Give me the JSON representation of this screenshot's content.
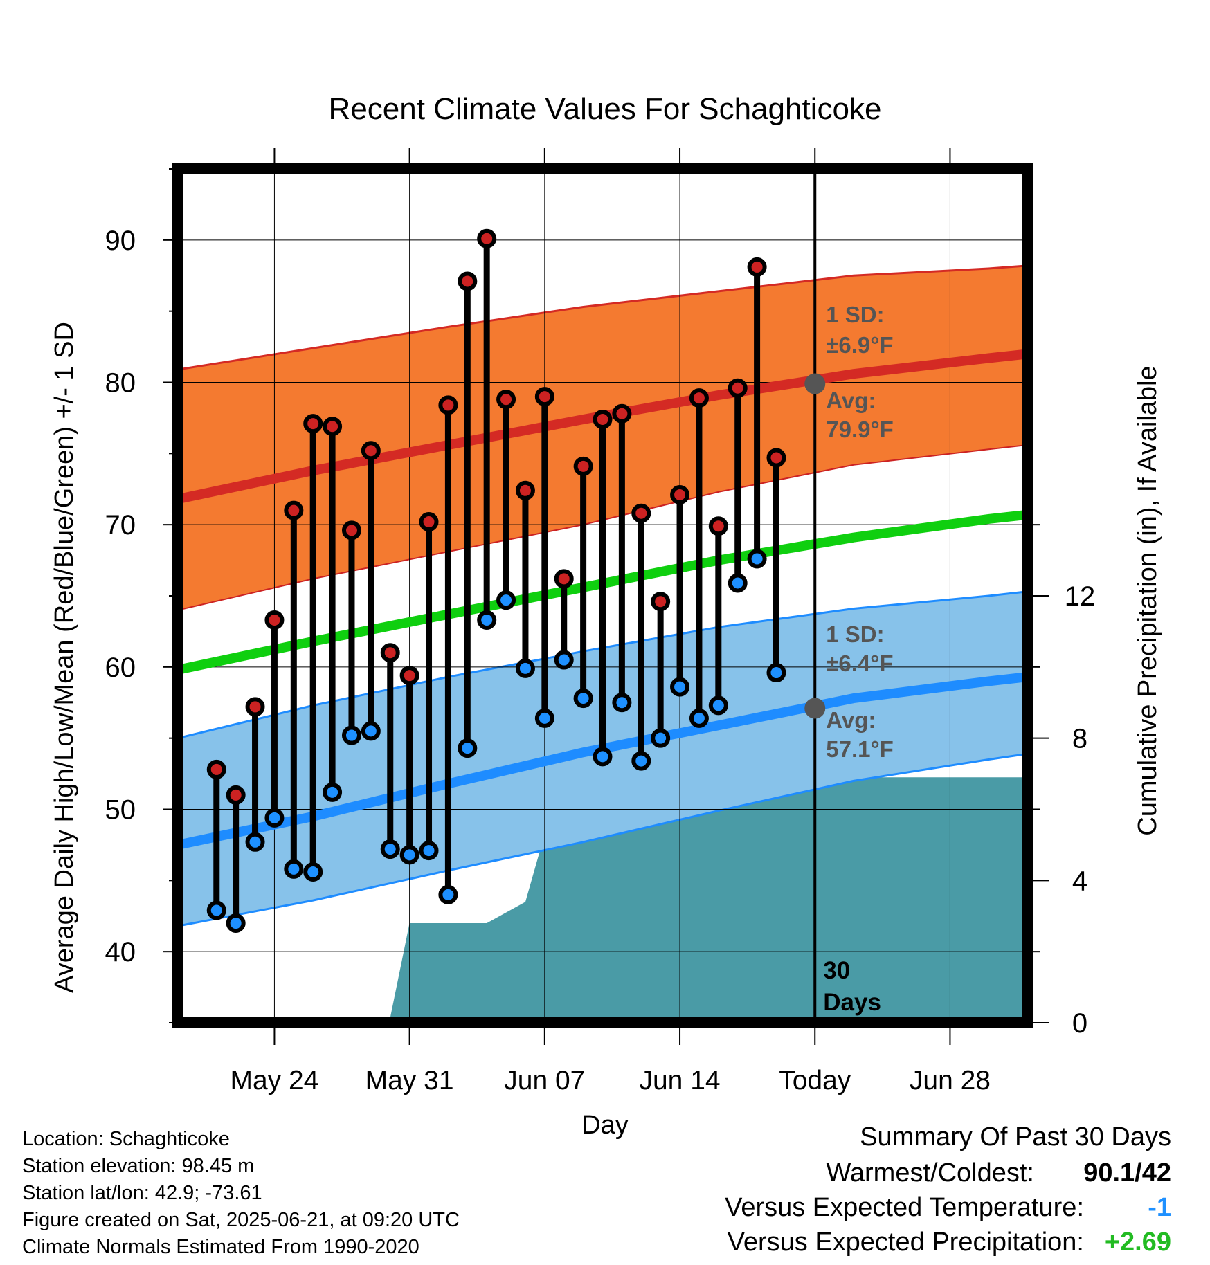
{
  "chart_data": {
    "type": "line",
    "title": "Recent Climate Values For Schaghticoke",
    "xlabel": "Day",
    "ylabel": "Average Daily High/Low/Mean (Red/Blue/Green) +/- 1 SD",
    "y2label": "Cumulative Precipitation (in), If Available",
    "ylim": [
      35,
      95
    ],
    "y2lim": [
      0,
      24
    ],
    "xlim": [
      "2025-05-19",
      "2025-07-02"
    ],
    "yticks": [
      "40",
      "50",
      "60",
      "70",
      "80",
      "90"
    ],
    "y2ticks": [
      "0",
      "4",
      "8",
      "12"
    ],
    "xticks": [
      {
        "date": "2025-05-24",
        "label": "May 24"
      },
      {
        "date": "2025-05-31",
        "label": "May 31"
      },
      {
        "date": "2025-06-07",
        "label": "Jun 07"
      },
      {
        "date": "2025-06-14",
        "label": "Jun 14"
      },
      {
        "date": "2025-06-21",
        "label": "Today"
      },
      {
        "date": "2025-06-28",
        "label": "Jun 28"
      }
    ],
    "grid": true,
    "today": "2025-06-21",
    "today_label_lines": [
      "30",
      "Days"
    ],
    "observed": {
      "dates": [
        "2025-05-21",
        "2025-05-22",
        "2025-05-23",
        "2025-05-24",
        "2025-05-25",
        "2025-05-26",
        "2025-05-27",
        "2025-05-28",
        "2025-05-29",
        "2025-05-30",
        "2025-05-31",
        "2025-06-01",
        "2025-06-02",
        "2025-06-03",
        "2025-06-04",
        "2025-06-05",
        "2025-06-06",
        "2025-06-07",
        "2025-06-08",
        "2025-06-09",
        "2025-06-10",
        "2025-06-11",
        "2025-06-12",
        "2025-06-13",
        "2025-06-14",
        "2025-06-15",
        "2025-06-16",
        "2025-06-17",
        "2025-06-18",
        "2025-06-19",
        "2025-06-20"
      ],
      "highs": [
        52.8,
        51.0,
        57.2,
        63.3,
        71.0,
        77.1,
        76.9,
        69.6,
        75.2,
        61.0,
        59.4,
        70.2,
        78.4,
        87.1,
        90.1,
        78.8,
        72.4,
        79.0,
        66.2,
        74.1,
        77.4,
        77.8,
        70.8,
        64.6,
        72.1,
        78.9,
        69.9,
        79.6,
        88.1,
        74.7,
        null
      ],
      "lows": [
        42.9,
        42.0,
        47.7,
        49.4,
        45.8,
        45.6,
        51.2,
        55.2,
        55.5,
        47.2,
        46.8,
        47.1,
        44.0,
        54.3,
        63.3,
        64.7,
        59.9,
        56.4,
        60.5,
        57.8,
        53.7,
        57.5,
        53.4,
        55.0,
        58.6,
        56.4,
        57.3,
        65.9,
        67.6,
        59.6,
        null
      ],
      "high_color": "#cc2222",
      "low_color": "#1e90ff"
    },
    "normals": {
      "dates": [
        "2025-05-19",
        "2025-05-26",
        "2025-06-02",
        "2025-06-09",
        "2025-06-16",
        "2025-06-23",
        "2025-06-30",
        "2025-07-02"
      ],
      "avg_high": [
        71.8,
        73.8,
        75.6,
        77.4,
        79.1,
        80.6,
        81.7,
        82.0
      ],
      "avg_high_upper": [
        80.9,
        82.4,
        83.9,
        85.3,
        86.4,
        87.5,
        88.0,
        88.2
      ],
      "avg_high_lower": [
        64.0,
        66.2,
        68.1,
        70.0,
        72.3,
        74.2,
        75.3,
        75.6
      ],
      "avg_low": [
        47.5,
        49.5,
        51.8,
        54.0,
        55.9,
        57.8,
        59.0,
        59.3
      ],
      "avg_low_upper": [
        55.0,
        57.3,
        59.3,
        61.1,
        62.8,
        64.1,
        65.0,
        65.3
      ],
      "avg_low_lower": [
        41.8,
        43.6,
        45.7,
        47.7,
        49.9,
        52.0,
        53.5,
        53.9
      ],
      "avg_mean": [
        59.8,
        61.8,
        63.7,
        65.6,
        67.5,
        69.1,
        70.4,
        70.7
      ],
      "today_high": {
        "label_sd": "1 SD:",
        "label_sd_value": "±6.9°F",
        "label_avg": "Avg:",
        "label_avg_value": "79.9°F",
        "value": 79.9
      },
      "today_low": {
        "label_sd": "1 SD:",
        "label_sd_value": "±6.4°F",
        "label_avg": "Avg:",
        "label_avg_value": "57.1°F",
        "value": 57.1
      },
      "high_band_color": "#f47a30",
      "high_line_color": "#d42a24",
      "low_band_color": "#87c2ea",
      "low_line_color": "#1e8cff",
      "mean_line_color": "#0fcf0f"
    },
    "precipitation": {
      "dates": [
        "2025-05-20",
        "2025-05-21",
        "2025-05-22",
        "2025-05-23",
        "2025-05-24",
        "2025-05-30",
        "2025-05-31",
        "2025-06-04",
        "2025-06-05",
        "2025-06-06",
        "2025-06-07",
        "2025-06-08",
        "2025-06-09",
        "2025-06-10",
        "2025-06-11",
        "2025-06-12",
        "2025-06-13",
        "2025-06-14",
        "2025-06-15",
        "2025-06-16",
        "2025-06-17",
        "2025-06-18",
        "2025-06-19",
        "2025-07-02"
      ],
      "values": [
        0.0,
        0.0,
        0.05,
        0.15,
        0.15,
        0.15,
        2.8,
        2.8,
        3.1,
        3.4,
        5.3,
        5.3,
        5.5,
        5.8,
        5.8,
        5.8,
        5.8,
        6.1,
        6.1,
        6.1,
        6.4,
        6.6,
        6.9,
        6.9
      ],
      "color": "#4a9ba6"
    }
  },
  "info": {
    "location": "Location: Schaghticoke",
    "elevation": "Station elevation: 98.45 m",
    "latlon": "Station lat/lon: 42.9; -73.61",
    "created": "Figure created on Sat, 2025-06-21, at 09:20 UTC",
    "normals": "Climate Normals Estimated From 1990-2020"
  },
  "summary": {
    "title": "Summary Of Past 30 Days",
    "warmest_coldest_label": "Warmest/Coldest:",
    "warmest_coldest_value": "90.1/42",
    "temp_label": "Versus Expected Temperature:",
    "temp_value": "-1",
    "temp_color": "#1e90ff",
    "precip_label": "Versus Expected Precipitation:",
    "precip_value": "+2.69",
    "precip_color": "#22bb22"
  }
}
